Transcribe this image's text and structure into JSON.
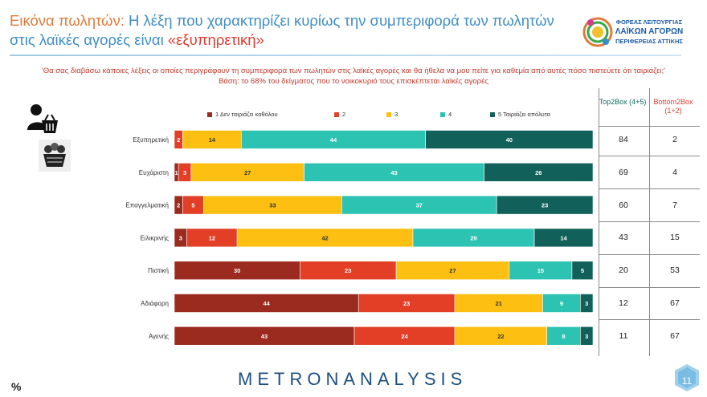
{
  "header": {
    "title_lead": "Εικόνα πωλητών:",
    "title_main": " Η λέξη που χαρακτηρίζει κυρίως την συμπεριφορά των πωλητών στις λαϊκές αγορές είναι ",
    "title_highlight": "«εξυπηρετική»"
  },
  "logo": {
    "line1": "ΦΟΡΕΑΣ ΛΕΙΤΟΥΡΓΙΑΣ",
    "line2": "ΛΑΪΚΩΝ ΑΓΟΡΩΝ",
    "line3": "ΠΕΡΙΦΕΡΕΙΑΣ ΑΤΤΙΚΗΣ"
  },
  "question": {
    "text": "'Θα σας διαβάσω κάποιες λέξεις οι οποίες περιγράφουν τη συμπεριφορά των πωλητών στις λαϊκές αγορές και θα ήθελα να μου πείτε για καθεμία από αυτές πόσο πιστεύετε ότι ταιριάζει;'",
    "base": "Βάση: το 68% του δείγματος που το νοικοκυριό τους επισκέπτεται λαϊκές αγορές"
  },
  "table": {
    "top2_header": "Top2Box (4+5)",
    "bot2_header": "Bottom2Box (1+2)"
  },
  "footer": {
    "percent": "%",
    "brand": "METRONANALYSIS",
    "page": "11"
  },
  "colors": {
    "s1": "#9b2a1f",
    "s2": "#e23f26",
    "s3": "#fcbf12",
    "s4": "#2dc3b3",
    "s5": "#12605a"
  },
  "chart_data": {
    "type": "bar",
    "orientation": "horizontal-stacked-100",
    "categories": [
      "Εξυπηρετική",
      "Ευχάριστη",
      "Επαγγελματική",
      "Ειλικρινής",
      "Πιστική",
      "Αδιάφορη",
      "Αγενής"
    ],
    "series": [
      {
        "name": "1 Δεν ταιριάζει καθόλου",
        "values": [
          0,
          1,
          2,
          3,
          30,
          44,
          43
        ]
      },
      {
        "name": "2",
        "values": [
          2,
          3,
          5,
          12,
          23,
          23,
          24
        ]
      },
      {
        "name": "3",
        "values": [
          14,
          27,
          33,
          42,
          27,
          21,
          22
        ]
      },
      {
        "name": "4",
        "values": [
          44,
          43,
          37,
          29,
          15,
          9,
          8
        ]
      },
      {
        "name": "5 Ταιριάζει απόλυτα",
        "values": [
          40,
          26,
          23,
          14,
          5,
          3,
          3
        ]
      }
    ],
    "top2box": [
      84,
      69,
      60,
      43,
      20,
      12,
      11
    ],
    "bottom2box": [
      2,
      4,
      7,
      15,
      53,
      67,
      67
    ],
    "legend_position": "top"
  }
}
